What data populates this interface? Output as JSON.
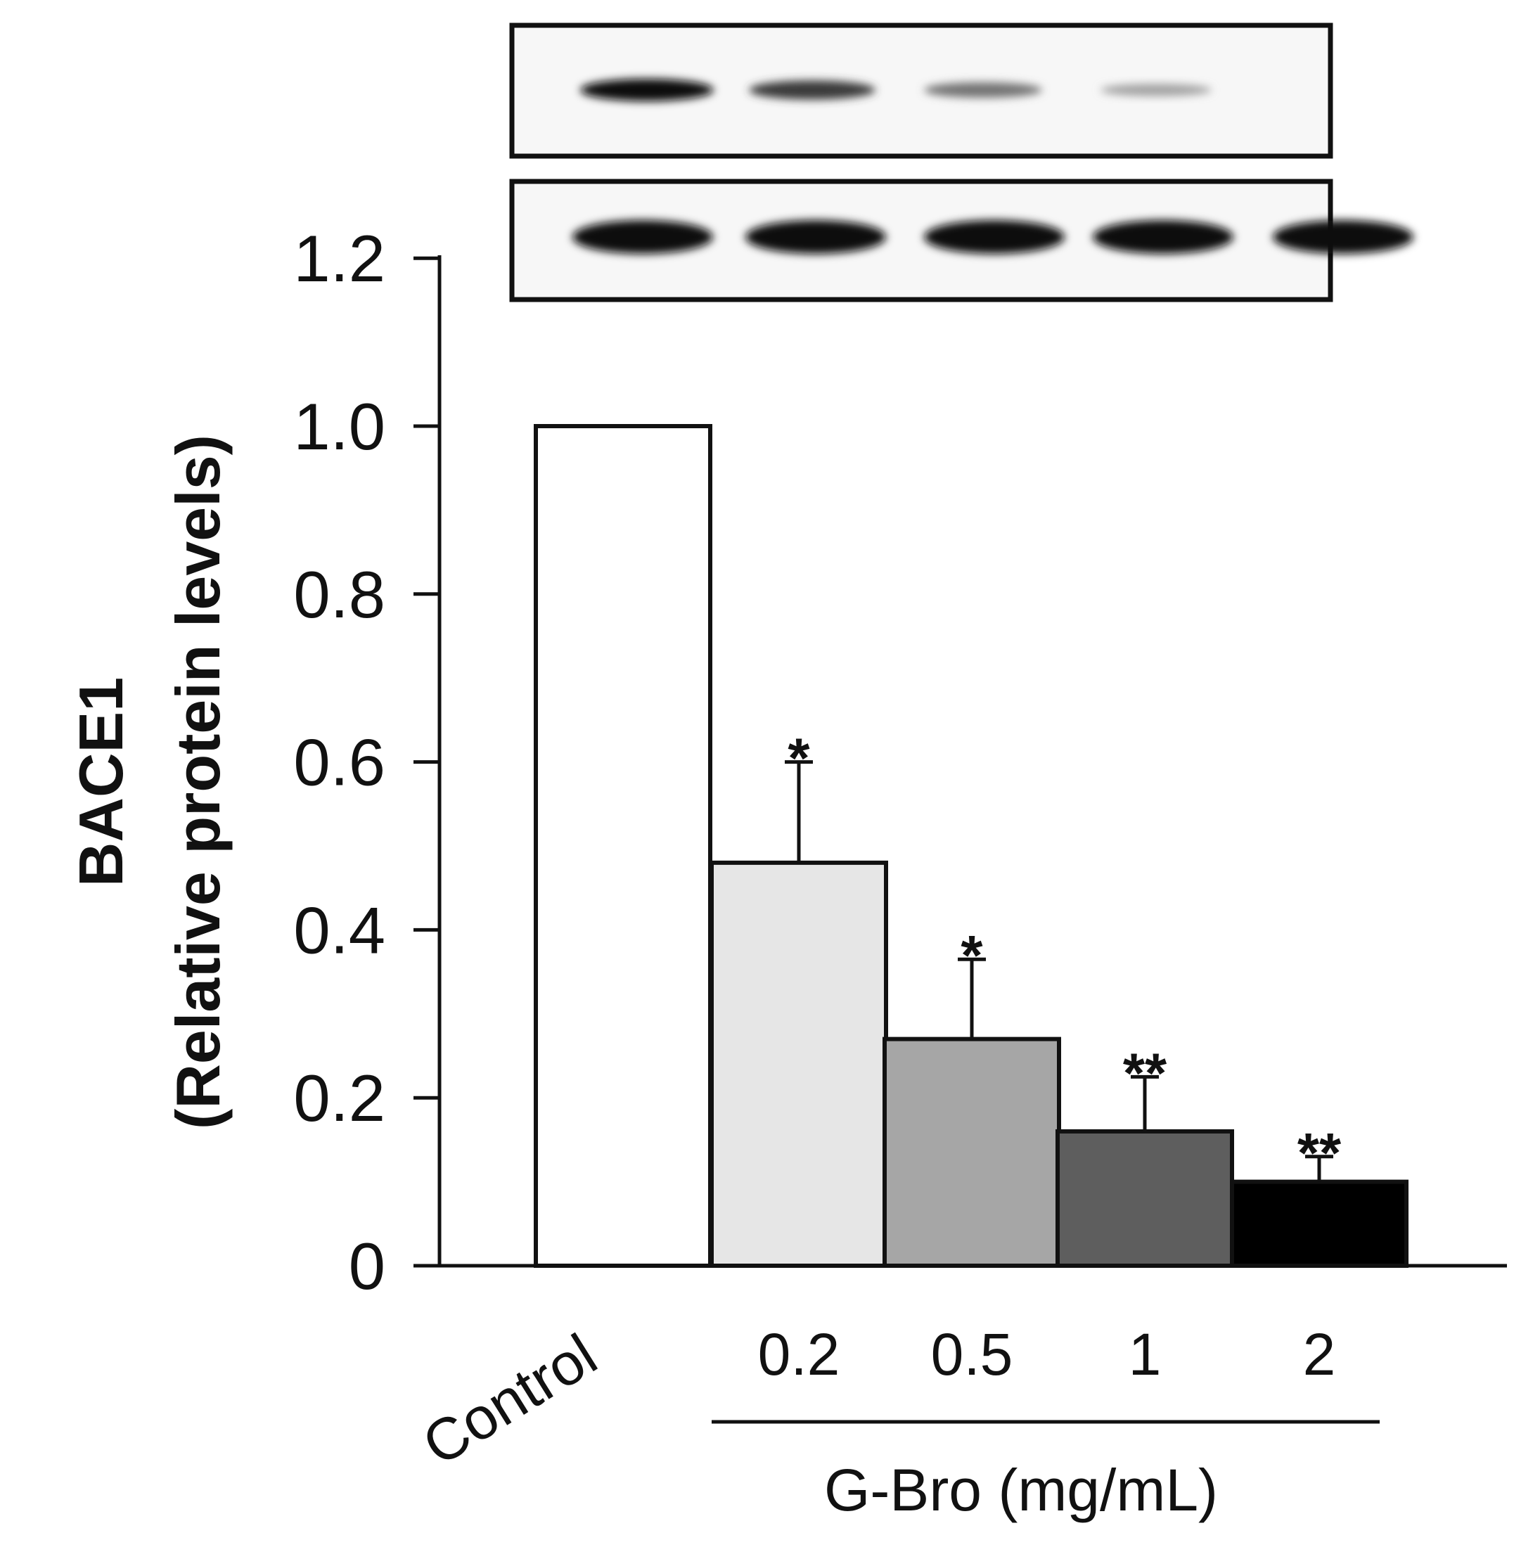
{
  "chart_data": {
    "type": "bar",
    "categories": [
      "Control",
      "0.2",
      "0.5",
      "1",
      "2"
    ],
    "values": [
      1.0,
      0.48,
      0.27,
      0.16,
      0.1
    ],
    "errors": [
      0,
      0.12,
      0.095,
      0.065,
      0.03
    ],
    "significance": [
      "",
      "*",
      "*",
      "**",
      "**"
    ],
    "bar_colors": [
      "#ffffff",
      "#e6e6e6",
      "#a6a6a6",
      "#5e5e5e",
      "#000000"
    ],
    "ylabel_line1": "BACE1",
    "ylabel_line2": "(Relative protein levels)",
    "xlabel": "",
    "group_label": "G-Bro (mg/mL)",
    "ylim": [
      0,
      1.2
    ],
    "yticks": [
      0,
      0.2,
      0.4,
      0.6,
      0.8,
      1.0,
      1.2
    ],
    "ytick_labels": [
      "0",
      "0.2",
      "0.4",
      "0.6",
      "0.8",
      "1.0",
      "1.2"
    ],
    "grid": false,
    "legend": "none"
  },
  "western_blot": {
    "lanes": 5,
    "target_band_intensity": [
      1.0,
      0.75,
      0.45,
      0.2,
      0.0
    ],
    "loading_band_intensity": [
      1.0,
      1.0,
      1.0,
      1.0,
      1.0
    ]
  }
}
